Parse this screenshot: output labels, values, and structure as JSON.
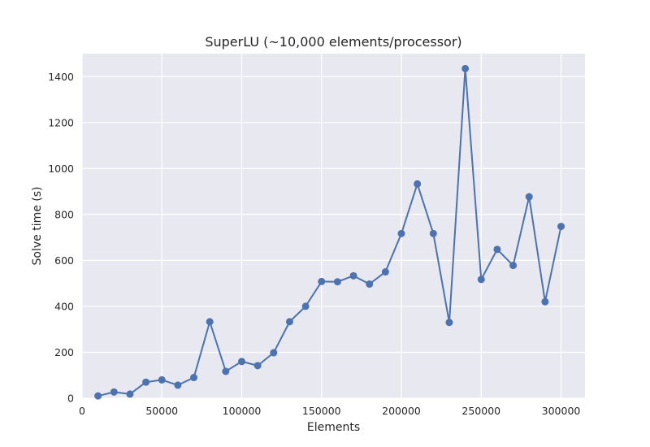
{
  "chart_data": {
    "type": "line",
    "title": "SuperLU (~10,000 elements/processor)",
    "xlabel": "Elements",
    "ylabel": "Solve time (s)",
    "xlim": [
      0,
      315000
    ],
    "ylim": [
      0,
      1500
    ],
    "x_ticks": [
      0,
      50000,
      100000,
      150000,
      200000,
      250000,
      300000
    ],
    "y_ticks": [
      0,
      200,
      400,
      600,
      800,
      1000,
      1200,
      1400
    ],
    "grid": true,
    "legend": "none",
    "series": [
      {
        "color": "#4c72b0",
        "marker": "circle",
        "x": [
          10000,
          20000,
          30000,
          40000,
          50000,
          60000,
          70000,
          80000,
          90000,
          100000,
          110000,
          120000,
          130000,
          140000,
          150000,
          160000,
          170000,
          180000,
          190000,
          200000,
          210000,
          220000,
          230000,
          240000,
          250000,
          260000,
          270000,
          280000,
          290000,
          300000
        ],
        "y": [
          10,
          27,
          18,
          70,
          80,
          57,
          90,
          333,
          117,
          160,
          142,
          198,
          333,
          400,
          508,
          507,
          533,
          497,
          550,
          717,
          933,
          717,
          330,
          1435,
          517,
          648,
          578,
          877,
          420,
          748
        ]
      }
    ]
  },
  "colors": {
    "plot_background": "#e8e8f0",
    "grid": "#ffffff",
    "text": "#262626"
  }
}
